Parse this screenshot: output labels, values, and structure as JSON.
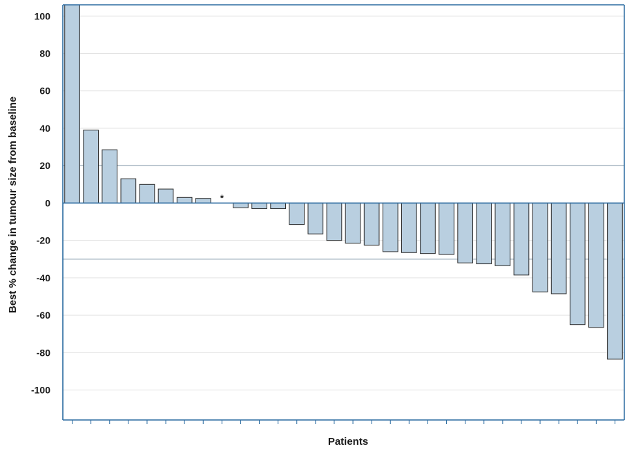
{
  "chart_data": {
    "type": "bar",
    "xlabel": "Patients",
    "ylabel": "Best % change in tumour size from baseline",
    "ylim": [
      -116,
      106
    ],
    "yticks": [
      100,
      80,
      60,
      40,
      20,
      0,
      -20,
      -40,
      -60,
      -80,
      -100
    ],
    "ytick_labels": [
      "100",
      "80",
      "60",
      "40",
      "20",
      "0",
      "-20",
      "-40",
      "-60",
      "-80",
      "-100"
    ],
    "reference_lines": [
      20,
      -30
    ],
    "bar_color": "#b9cfe0",
    "grid": true,
    "values": [
      106,
      39,
      28.5,
      13,
      10,
      7.5,
      3,
      2.5,
      0,
      -2.5,
      -3,
      -3,
      -11.5,
      -16.5,
      -20,
      -21.5,
      -22.5,
      -26,
      -26.5,
      -27,
      -27.5,
      -32,
      -32.5,
      -33.5,
      -38.5,
      -47.5,
      -48.5,
      -65,
      -66.5,
      -83.5
    ],
    "annotations": [
      {
        "index": 8,
        "text": "*"
      }
    ]
  }
}
